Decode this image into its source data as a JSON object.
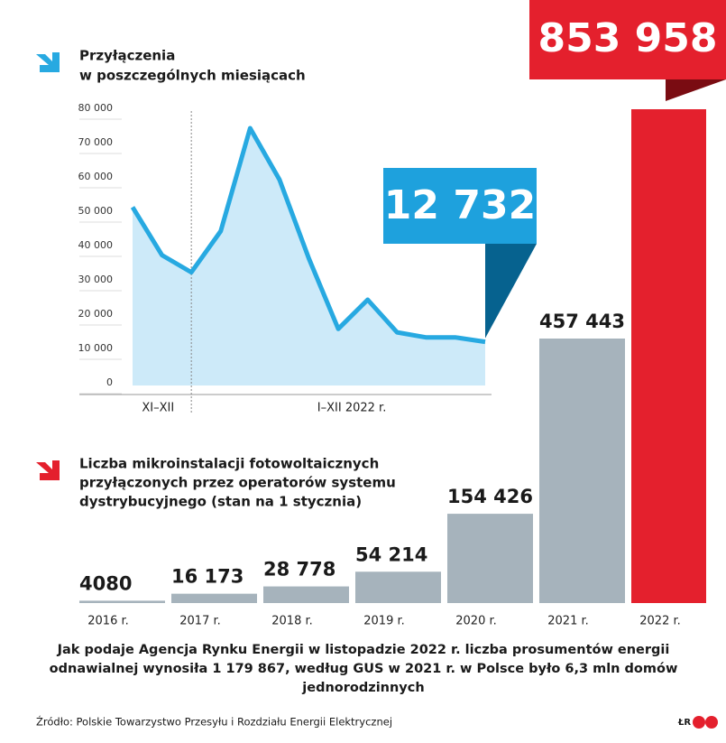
{
  "chart_data": [
    {
      "type": "line",
      "title": [
        "Przyłączenia",
        "w poszczególnych miesiącach"
      ],
      "categories": [
        null,
        null,
        null,
        null,
        null,
        null,
        null,
        null,
        null,
        null,
        null,
        null,
        null
      ],
      "x_group_labels": [
        "XI–XII",
        "I–XII 2022 r."
      ],
      "values": [
        52000,
        38000,
        33000,
        45000,
        75000,
        60000,
        37000,
        16500,
        25000,
        15500,
        14000,
        14000,
        12732
      ],
      "value_labels": [
        null,
        null,
        null,
        null,
        null,
        null,
        null,
        null,
        null,
        null,
        null,
        null,
        "12 732"
      ],
      "color": "#27a9e1",
      "area_color": "#cdeaf9",
      "callout_color": "#1ea1dd",
      "callout_tail_color": "#06628f",
      "ylim": [
        0,
        80000
      ],
      "yticks": [
        0,
        {
          "value": 10000,
          "label": "10 000"
        },
        {
          "value": 20000,
          "label": "20 000"
        },
        {
          "value": 30000,
          "label": "30 000"
        },
        {
          "value": 40000,
          "label": "40 000"
        },
        {
          "value": 50000,
          "label": "50 000"
        },
        {
          "value": 60000,
          "label": "60 000"
        },
        {
          "value": 70000,
          "label": "70 000"
        },
        {
          "value": 80000,
          "label": "80 000"
        }
      ]
    },
    {
      "type": "bar",
      "title": [
        "Liczba mikroinstalacji fotowoltaicznych",
        "przyłączonych przez operatorów systemu",
        "dystrybucyjnego (stan na 1 stycznia)"
      ],
      "categories": [
        "2016 r.",
        "2017 r.",
        "2018 r.",
        "2019 r.",
        "2020 r.",
        "2021 r.",
        "2022 r."
      ],
      "values": [
        4080,
        16173,
        28778,
        54214,
        154426,
        457443,
        853958
      ],
      "value_labels": [
        "4080",
        "16 173",
        "28 778",
        "54 214",
        "154 426",
        "457 443",
        "853 958"
      ],
      "colors": [
        "#a6b3bc",
        "#a6b3bc",
        "#a6b3bc",
        "#a6b3bc",
        "#a6b3bc",
        "#a6b3bc",
        "#e4202d"
      ]
    }
  ],
  "footnote": [
    "Jak podaje Agencja Rynku Energii w listopadzie 2022 r. liczba prosumentów energii",
    "odnawialnej wynosiła 1 179 867, według GUS w 2021 r. w Polsce było 6,3 mln domów",
    "jednorodzinnych"
  ],
  "source": "Źródło: Polskie Towarzystwo Przesyłu i Rozdziału Energii Elektrycznej",
  "credit": "ŁR"
}
